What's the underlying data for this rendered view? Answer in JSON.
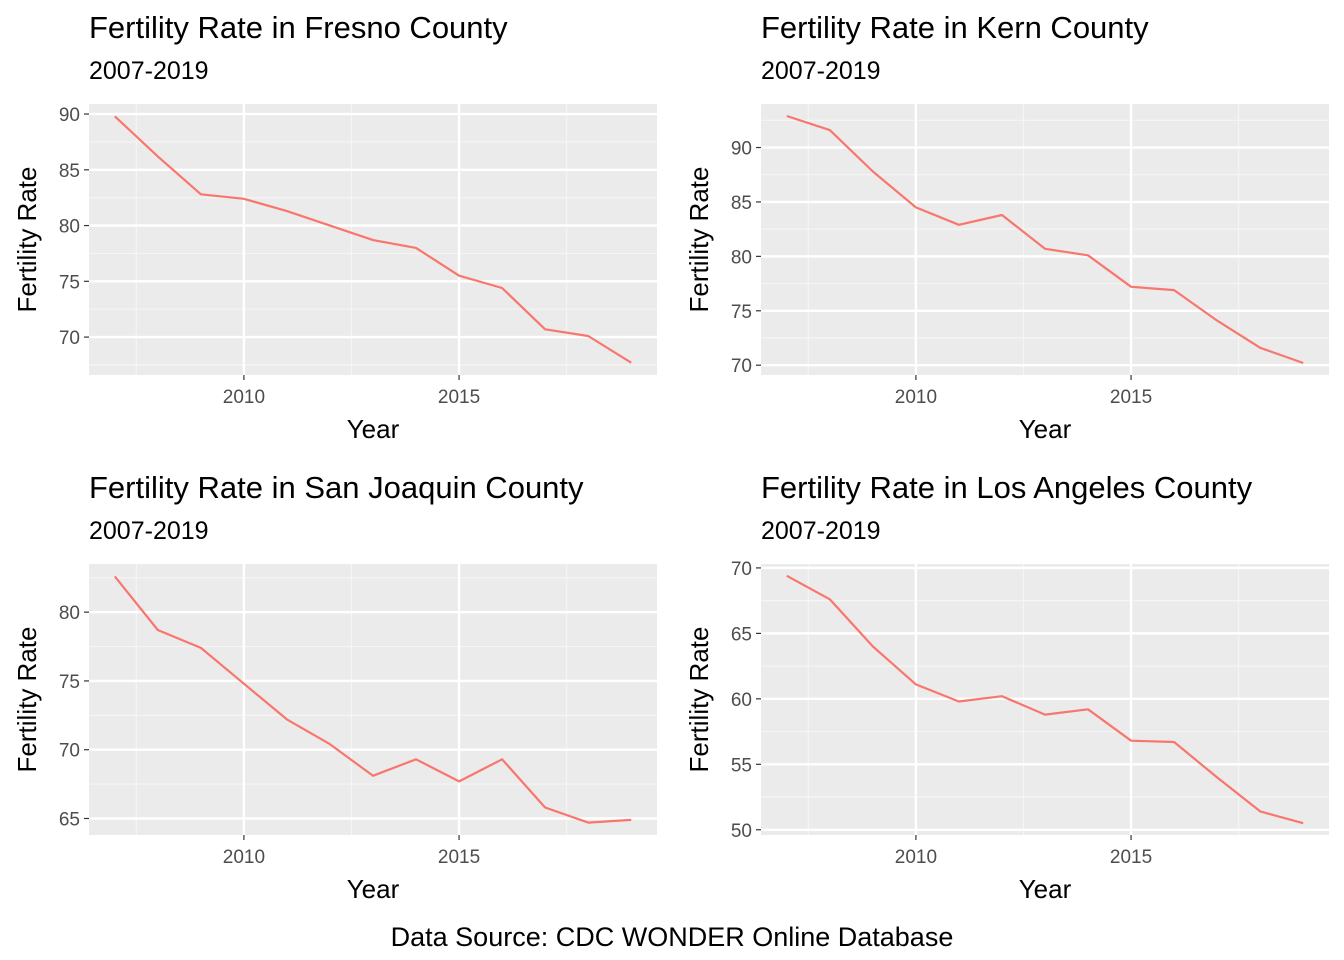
{
  "caption": "Data Source: CDC WONDER Online Database",
  "colors": {
    "line": "#F8766D",
    "panel_bg": "#EBEBEB"
  },
  "chart_data": [
    {
      "type": "line",
      "title": "Fertility Rate in Fresno County",
      "subtitle": "2007-2019",
      "xlabel": "Year",
      "ylabel": "Fertility Rate",
      "x": [
        2007,
        2008,
        2009,
        2010,
        2011,
        2012,
        2013,
        2014,
        2015,
        2016,
        2017,
        2018,
        2019
      ],
      "y": [
        89.8,
        86.2,
        82.8,
        82.4,
        81.3,
        80.0,
        78.7,
        78.0,
        75.5,
        74.4,
        70.7,
        70.1,
        67.7
      ],
      "xlim": [
        2006.4,
        2019.6
      ],
      "ylim": [
        66.6,
        90.9
      ],
      "xticks": [
        2010,
        2015
      ],
      "yticks": [
        70,
        75,
        80,
        85,
        90
      ],
      "grid": true,
      "legend": "none"
    },
    {
      "type": "line",
      "title": "Fertility Rate in Kern County",
      "subtitle": "2007-2019",
      "xlabel": "Year",
      "ylabel": "Fertility Rate",
      "x": [
        2007,
        2008,
        2009,
        2010,
        2011,
        2012,
        2013,
        2014,
        2015,
        2016,
        2017,
        2018,
        2019
      ],
      "y": [
        92.9,
        91.6,
        87.8,
        84.5,
        82.9,
        83.8,
        80.7,
        80.1,
        77.2,
        76.9,
        74.1,
        71.6,
        70.2
      ],
      "xlim": [
        2006.4,
        2019.6
      ],
      "ylim": [
        69.1,
        94.0
      ],
      "xticks": [
        2010,
        2015
      ],
      "yticks": [
        70,
        75,
        80,
        85,
        90
      ],
      "grid": true,
      "legend": "none"
    },
    {
      "type": "line",
      "title": "Fertility Rate in San Joaquin County",
      "subtitle": "2007-2019",
      "xlabel": "Year",
      "ylabel": "Fertility Rate",
      "x": [
        2007,
        2008,
        2009,
        2010,
        2011,
        2012,
        2013,
        2014,
        2015,
        2016,
        2017,
        2018,
        2019
      ],
      "y": [
        82.6,
        78.7,
        77.4,
        74.8,
        72.2,
        70.4,
        68.1,
        69.3,
        67.7,
        69.3,
        65.8,
        64.7,
        64.9
      ],
      "xlim": [
        2006.4,
        2019.6
      ],
      "ylim": [
        63.8,
        83.5
      ],
      "xticks": [
        2010,
        2015
      ],
      "yticks": [
        65,
        70,
        75,
        80
      ],
      "grid": true,
      "legend": "none"
    },
    {
      "type": "line",
      "title": "Fertility Rate in Los Angeles County",
      "subtitle": "2007-2019",
      "xlabel": "Year",
      "ylabel": "Fertility Rate",
      "x": [
        2007,
        2008,
        2009,
        2010,
        2011,
        2012,
        2013,
        2014,
        2015,
        2016,
        2017,
        2018,
        2019
      ],
      "y": [
        69.4,
        67.6,
        64.0,
        61.1,
        59.8,
        60.2,
        58.8,
        59.2,
        56.8,
        56.7,
        54.0,
        51.4,
        50.5
      ],
      "xlim": [
        2006.4,
        2019.6
      ],
      "ylim": [
        49.6,
        70.3
      ],
      "xticks": [
        2010,
        2015
      ],
      "yticks": [
        50,
        55,
        60,
        65,
        70
      ],
      "grid": true,
      "legend": "none"
    }
  ]
}
